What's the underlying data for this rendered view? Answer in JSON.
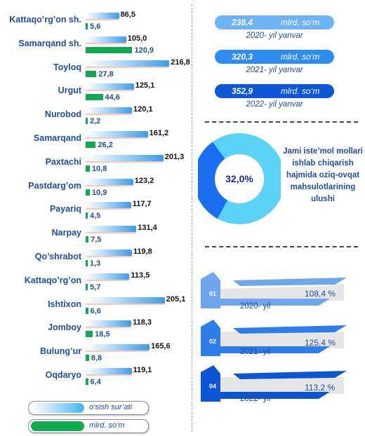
{
  "chart_data": [
    {
      "type": "bar",
      "categories": [
        "Kattaqo’rg’on sh.",
        "Samarqand sh.",
        "Toyloq",
        "Urgut",
        "Nurobod",
        "Samarqand",
        "Paxtachi",
        "Pastdarg’om",
        "Payariq",
        "Narpay",
        "Qo’shrabot",
        "Kattaqo’rg’on",
        "Ishtixon",
        "Jomboy",
        "Bulung’ur",
        "Oqdaryo"
      ],
      "series": [
        {
          "name": "o‘sish sur’ati",
          "color": "#3d9be9",
          "values": [
            86.5,
            105.0,
            216.8,
            125.1,
            120.1,
            161.2,
            201.3,
            123.2,
            117.7,
            131.4,
            119.8,
            113.5,
            205.1,
            118.3,
            165.6,
            119.1
          ]
        },
        {
          "name": "mlrd. so‘m",
          "color": "#0fa950",
          "values": [
            5.6,
            120.9,
            27.8,
            44.6,
            2.2,
            26.2,
            10.8,
            10.9,
            4.5,
            7.5,
            1.3,
            5.7,
            6.6,
            18.5,
            8.8,
            6.4
          ]
        }
      ],
      "labels_1": [
        "86,5",
        "105,0",
        "216,8",
        "125,1",
        "120,1",
        "161,2",
        "201,3",
        "123,2",
        "117,7",
        "131,4",
        "119,8",
        "113,5",
        "205,1",
        "118,3",
        "165,6",
        "119,1"
      ],
      "labels_2": [
        "5,6",
        "120,9",
        "27,8",
        "44,6",
        "2,2",
        "26,2",
        "10,8",
        "10,9",
        "4,5",
        "7,5",
        "1,3",
        "5,7",
        "6,6",
        "18,5",
        "8,8",
        "6,4"
      ]
    },
    {
      "type": "pie",
      "values": [
        32.0,
        68.0
      ],
      "center_label": "32,0%",
      "colors": [
        "#1a6ff0",
        "#5ad3f7"
      ],
      "description": "Jami iste’mol mollari ishlab chiqarish hajmida oziq-ovqat mahsulotlarining ulushi"
    },
    {
      "type": "table",
      "rows": [
        {
          "value": "238,4",
          "unit": "mlrd. so‘m",
          "year": "2020- yil yanvar",
          "color": "#6eb2f7"
        },
        {
          "value": "320,3",
          "unit": "mlrd. so‘m",
          "year": "2021- yil yanvar",
          "color": "#2f8cf0"
        },
        {
          "value": "352,9",
          "unit": "mlrd. so‘m",
          "year": "2022- yil yanvar",
          "color": "#0d57d6"
        }
      ]
    },
    {
      "type": "table",
      "rows": [
        {
          "num": "01",
          "year": "2020- yil",
          "pct": "108,4 %",
          "color": "#6fa6ee"
        },
        {
          "num": "02",
          "year": "2021- yil",
          "pct": "125,4 %",
          "color": "#2d7ee8"
        },
        {
          "num": "04",
          "year": "2022- yil",
          "pct": "113,2 %",
          "color": "#0c56d6"
        }
      ]
    }
  ],
  "legend": {
    "growth_label": "o‘sish sur’ati",
    "volume_label": "mlrd. so‘m"
  }
}
